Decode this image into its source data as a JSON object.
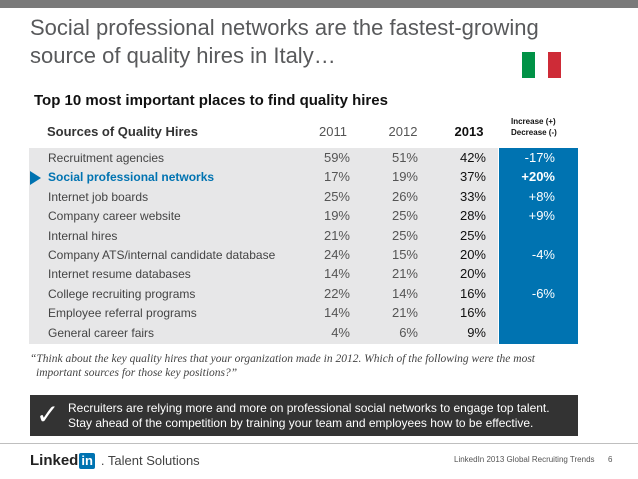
{
  "header": {
    "title_line1": "Social professional networks are the fastest-growing",
    "title_line2": "source of quality hires in Italy…",
    "subtitle": "Top 10 most important places to find quality hires",
    "flag_colors": [
      "#009246",
      "#ffffff",
      "#ce2b37"
    ]
  },
  "table": {
    "col_source": "Sources of Quality Hires",
    "col_2011": "2011",
    "col_2012": "2012",
    "col_2013": "2013",
    "col_change_line1": "Increase (+)",
    "col_change_line2": "Decrease (-)"
  },
  "chart_data": {
    "type": "table",
    "title": "Top 10 most important places to find quality hires",
    "columns": [
      "Sources of Quality Hires",
      "2011",
      "2012",
      "2013",
      "Increase (+) Decrease (-)"
    ],
    "highlight_row": 1,
    "rows": [
      {
        "source": "Recruitment agencies",
        "y2011": "59%",
        "y2012": "51%",
        "y2013": "42%",
        "change": "-17%"
      },
      {
        "source": "Social professional networks",
        "y2011": "17%",
        "y2012": "19%",
        "y2013": "37%",
        "change": "+20%"
      },
      {
        "source": "Internet job boards",
        "y2011": "25%",
        "y2012": "26%",
        "y2013": "33%",
        "change": "+8%"
      },
      {
        "source": "Company career website",
        "y2011": "19%",
        "y2012": "25%",
        "y2013": "28%",
        "change": "+9%"
      },
      {
        "source": "Internal hires",
        "y2011": "21%",
        "y2012": "25%",
        "y2013": "25%",
        "change": ""
      },
      {
        "source": "Company ATS/internal candidate database",
        "y2011": "24%",
        "y2012": "15%",
        "y2013": "20%",
        "change": "-4%"
      },
      {
        "source": "Internet resume databases",
        "y2011": "14%",
        "y2012": "21%",
        "y2013": "20%",
        "change": ""
      },
      {
        "source": "College recruiting programs",
        "y2011": "22%",
        "y2012": "14%",
        "y2013": "16%",
        "change": "-6%"
      },
      {
        "source": "Employee referral programs",
        "y2011": "14%",
        "y2012": "21%",
        "y2013": "16%",
        "change": ""
      },
      {
        "source": "General career fairs",
        "y2011": "4%",
        "y2012": "6%",
        "y2013": "9%",
        "change": ""
      }
    ]
  },
  "quote": {
    "line1": "“Think about the key quality hires that your organization made in 2012. Which of the following were the most",
    "line2": "important sources for those key positions?”"
  },
  "callout": {
    "check": "✓",
    "line1": "Recruiters are relying more and more on professional social networks to engage top talent.",
    "line2": "Stay ahead of the competition by training your team and employees how to be effective."
  },
  "footer": {
    "logo_linked": "Linked",
    "logo_in": "in",
    "logo_ts": ". Talent Solutions",
    "note": "LinkedIn 2013 Global Recruiting Trends",
    "page": "6"
  },
  "colors": {
    "accent_blue": "#0073b1",
    "table_bg": "#e7e7e8",
    "callout_bg": "#333333"
  }
}
